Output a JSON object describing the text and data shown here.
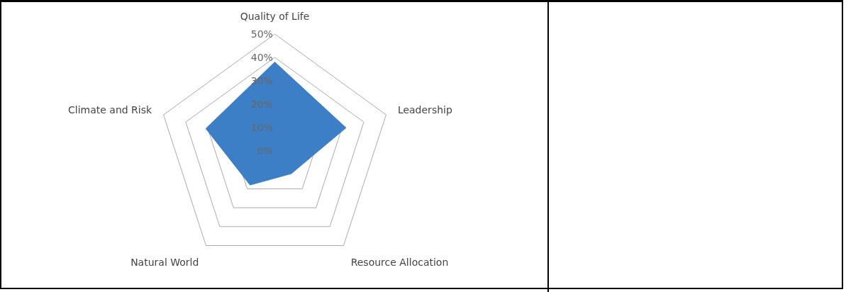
{
  "chart_data": {
    "type": "radar",
    "categories": [
      "Quality of Life",
      "Leadership",
      "Resource Allocation",
      "Natural World",
      "Climate and Risk"
    ],
    "series": [
      {
        "color": "#3d7fc6",
        "values": [
          38,
          32,
          12,
          18,
          31
        ]
      }
    ],
    "ylim": [
      0,
      50
    ],
    "yticks": [
      {
        "value": 0,
        "label": "0%"
      },
      {
        "value": 10,
        "label": "10%"
      },
      {
        "value": 20,
        "label": "20%"
      },
      {
        "value": 30,
        "label": "30%"
      },
      {
        "value": 40,
        "label": "40%"
      },
      {
        "value": 50,
        "label": "50%"
      }
    ],
    "grid": true,
    "marker": "none"
  }
}
